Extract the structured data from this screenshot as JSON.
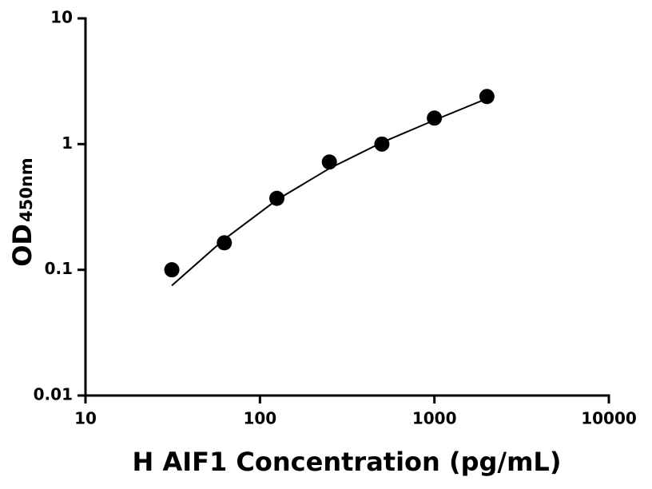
{
  "chart_data": {
    "type": "scatter",
    "x_label": "H AIF1 Concentration (pg/mL)",
    "y_label": "OD",
    "y_label_subscript": "450nm",
    "x_log": true,
    "y_log": true,
    "xlim": [
      10,
      10000
    ],
    "xticks": [
      10,
      100,
      1000,
      10000
    ],
    "ylim": [
      0.01,
      10
    ],
    "yticks": [
      0.01,
      0.1,
      1,
      10
    ],
    "series": [
      {
        "type": "scatter",
        "color": "#000000",
        "x": [
          31.25,
          62.5,
          125,
          250,
          500,
          1000,
          2000
        ],
        "values": [
          0.1,
          0.164,
          0.37,
          0.72,
          1.0,
          1.61,
          2.39
        ]
      },
      {
        "type": "line",
        "color": "#000000",
        "x": [
          31.25,
          62.5,
          125,
          250,
          500,
          1000,
          2000
        ],
        "values": [
          0.075,
          0.175,
          0.36,
          0.64,
          1.03,
          1.55,
          2.3
        ]
      }
    ]
  }
}
